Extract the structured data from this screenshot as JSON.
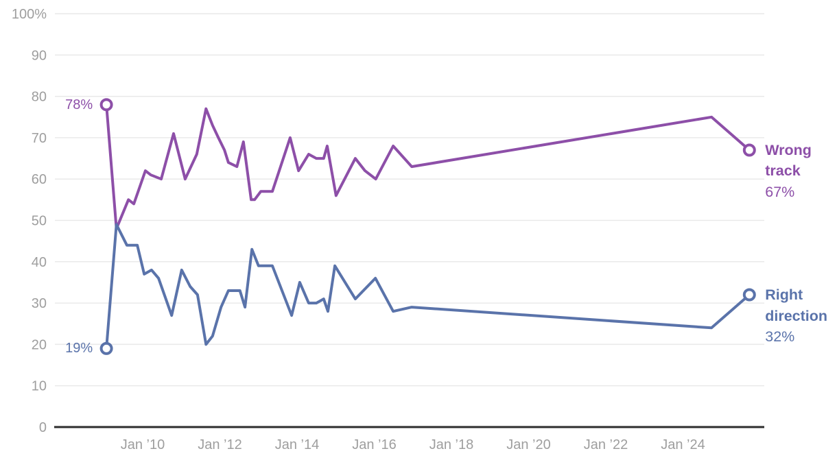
{
  "colors": {
    "background": "#ffffff",
    "grid": "#e9e9e9",
    "axis": "#2d2d2d",
    "tick_text": "#9e9e9e",
    "wrong_track_purple": "#8d4fa8",
    "right_direction_blue": "#5a73aa"
  },
  "chart_data": {
    "type": "line",
    "title": "",
    "xlabel": "",
    "ylabel": "",
    "grid": true,
    "legend_position": "right-end-labels",
    "x_axis": {
      "unit": "decimal-year",
      "range_shown": [
        2007.8,
        2026.1
      ],
      "ticks": [
        {
          "t": 2010,
          "label": "Jan ’10"
        },
        {
          "t": 2012,
          "label": "Jan ’12"
        },
        {
          "t": 2014,
          "label": "Jan ’14"
        },
        {
          "t": 2016,
          "label": "Jan ’16"
        },
        {
          "t": 2018,
          "label": "Jan ’18"
        },
        {
          "t": 2020,
          "label": "Jan ’20"
        },
        {
          "t": 2022,
          "label": "Jan ’22"
        },
        {
          "t": 2024,
          "label": "Jan ’24"
        }
      ]
    },
    "y_axis": {
      "min": 0,
      "max": 100,
      "tick_step": 10,
      "ticks": [
        {
          "v": 100,
          "label": "100%"
        },
        {
          "v": 90,
          "label": "90"
        },
        {
          "v": 80,
          "label": "80"
        },
        {
          "v": 70,
          "label": "70"
        },
        {
          "v": 60,
          "label": "60"
        },
        {
          "v": 50,
          "label": "50"
        },
        {
          "v": 40,
          "label": "40"
        },
        {
          "v": 30,
          "label": "30"
        },
        {
          "v": 20,
          "label": "20"
        },
        {
          "v": 10,
          "label": "10"
        },
        {
          "v": 0,
          "label": "0"
        }
      ]
    },
    "series": [
      {
        "name": "Wrong track",
        "color": "#8d4fa8",
        "start_value": "78%",
        "end_value": "67%",
        "points": [
          [
            2009.06,
            78
          ],
          [
            2009.32,
            48
          ],
          [
            2009.63,
            55
          ],
          [
            2009.77,
            54
          ],
          [
            2010.07,
            62
          ],
          [
            2010.21,
            61
          ],
          [
            2010.48,
            60
          ],
          [
            2010.8,
            71
          ],
          [
            2011.1,
            60
          ],
          [
            2011.4,
            66
          ],
          [
            2011.64,
            77
          ],
          [
            2011.81,
            73
          ],
          [
            2011.96,
            70
          ],
          [
            2012.12,
            67
          ],
          [
            2012.22,
            64
          ],
          [
            2012.44,
            63
          ],
          [
            2012.61,
            69
          ],
          [
            2012.81,
            55
          ],
          [
            2012.9,
            55
          ],
          [
            2013.06,
            57
          ],
          [
            2013.36,
            57
          ],
          [
            2013.82,
            70
          ],
          [
            2014.04,
            62
          ],
          [
            2014.3,
            66
          ],
          [
            2014.5,
            65
          ],
          [
            2014.69,
            65
          ],
          [
            2014.78,
            68
          ],
          [
            2015.01,
            56
          ],
          [
            2015.51,
            65
          ],
          [
            2015.76,
            62
          ],
          [
            2016.04,
            60
          ],
          [
            2016.49,
            68
          ],
          [
            2016.97,
            63
          ],
          [
            2024.74,
            75
          ],
          [
            2025.72,
            67
          ]
        ]
      },
      {
        "name": "Right direction",
        "color": "#5a73aa",
        "start_value": "19%",
        "end_value": "32%",
        "points": [
          [
            2009.06,
            19
          ],
          [
            2009.32,
            49
          ],
          [
            2009.59,
            44
          ],
          [
            2009.86,
            44
          ],
          [
            2010.04,
            37
          ],
          [
            2010.23,
            38
          ],
          [
            2010.41,
            36
          ],
          [
            2010.75,
            27
          ],
          [
            2011.01,
            38
          ],
          [
            2011.23,
            34
          ],
          [
            2011.42,
            32
          ],
          [
            2011.64,
            20
          ],
          [
            2011.81,
            22
          ],
          [
            2012.03,
            29
          ],
          [
            2012.22,
            33
          ],
          [
            2012.52,
            33
          ],
          [
            2012.65,
            29
          ],
          [
            2012.83,
            43
          ],
          [
            2013.0,
            39
          ],
          [
            2013.36,
            39
          ],
          [
            2013.86,
            27
          ],
          [
            2014.07,
            35
          ],
          [
            2014.3,
            30
          ],
          [
            2014.5,
            30
          ],
          [
            2014.69,
            31
          ],
          [
            2014.8,
            28
          ],
          [
            2014.98,
            39
          ],
          [
            2015.51,
            31
          ],
          [
            2016.03,
            36
          ],
          [
            2016.49,
            28
          ],
          [
            2016.97,
            29
          ],
          [
            2024.74,
            24
          ],
          [
            2025.72,
            32
          ]
        ]
      }
    ]
  }
}
